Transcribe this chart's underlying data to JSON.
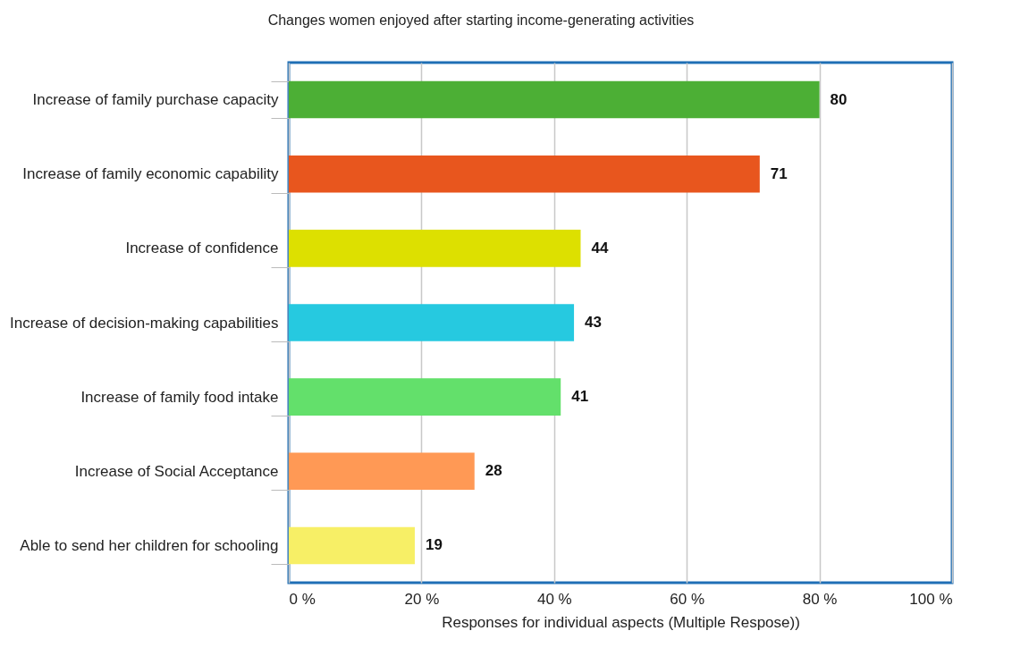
{
  "chart_data": {
    "type": "bar",
    "orientation": "horizontal",
    "title": "Changes women enjoyed after starting income-generating activities",
    "xlabel": "Responses for individual aspects (Multiple Respose))",
    "categories": [
      "Increase of family purchase capacity",
      "Increase of family economic capability",
      "Increase of confidence",
      "Increase of decision-making capabilities",
      "Increase of family food intake",
      "Increase of Social Acceptance",
      "Able to send her children for schooling"
    ],
    "values": [
      80,
      71,
      44,
      43,
      41,
      28,
      19
    ],
    "colors": [
      "#4caf35",
      "#e8561e",
      "#dde000",
      "#26c9e0",
      "#63e06b",
      "#ff9955",
      "#f7ef66"
    ],
    "xlim": [
      0,
      100
    ],
    "xticks": [
      {
        "value": 0,
        "label": "0 %"
      },
      {
        "value": 20,
        "label": "20 %"
      },
      {
        "value": 40,
        "label": "40 %"
      },
      {
        "value": 60,
        "label": "60 %"
      },
      {
        "value": 80,
        "label": "80 %"
      },
      {
        "value": 100,
        "label": "100 %"
      }
    ],
    "grid": "x",
    "data_labels": true
  }
}
